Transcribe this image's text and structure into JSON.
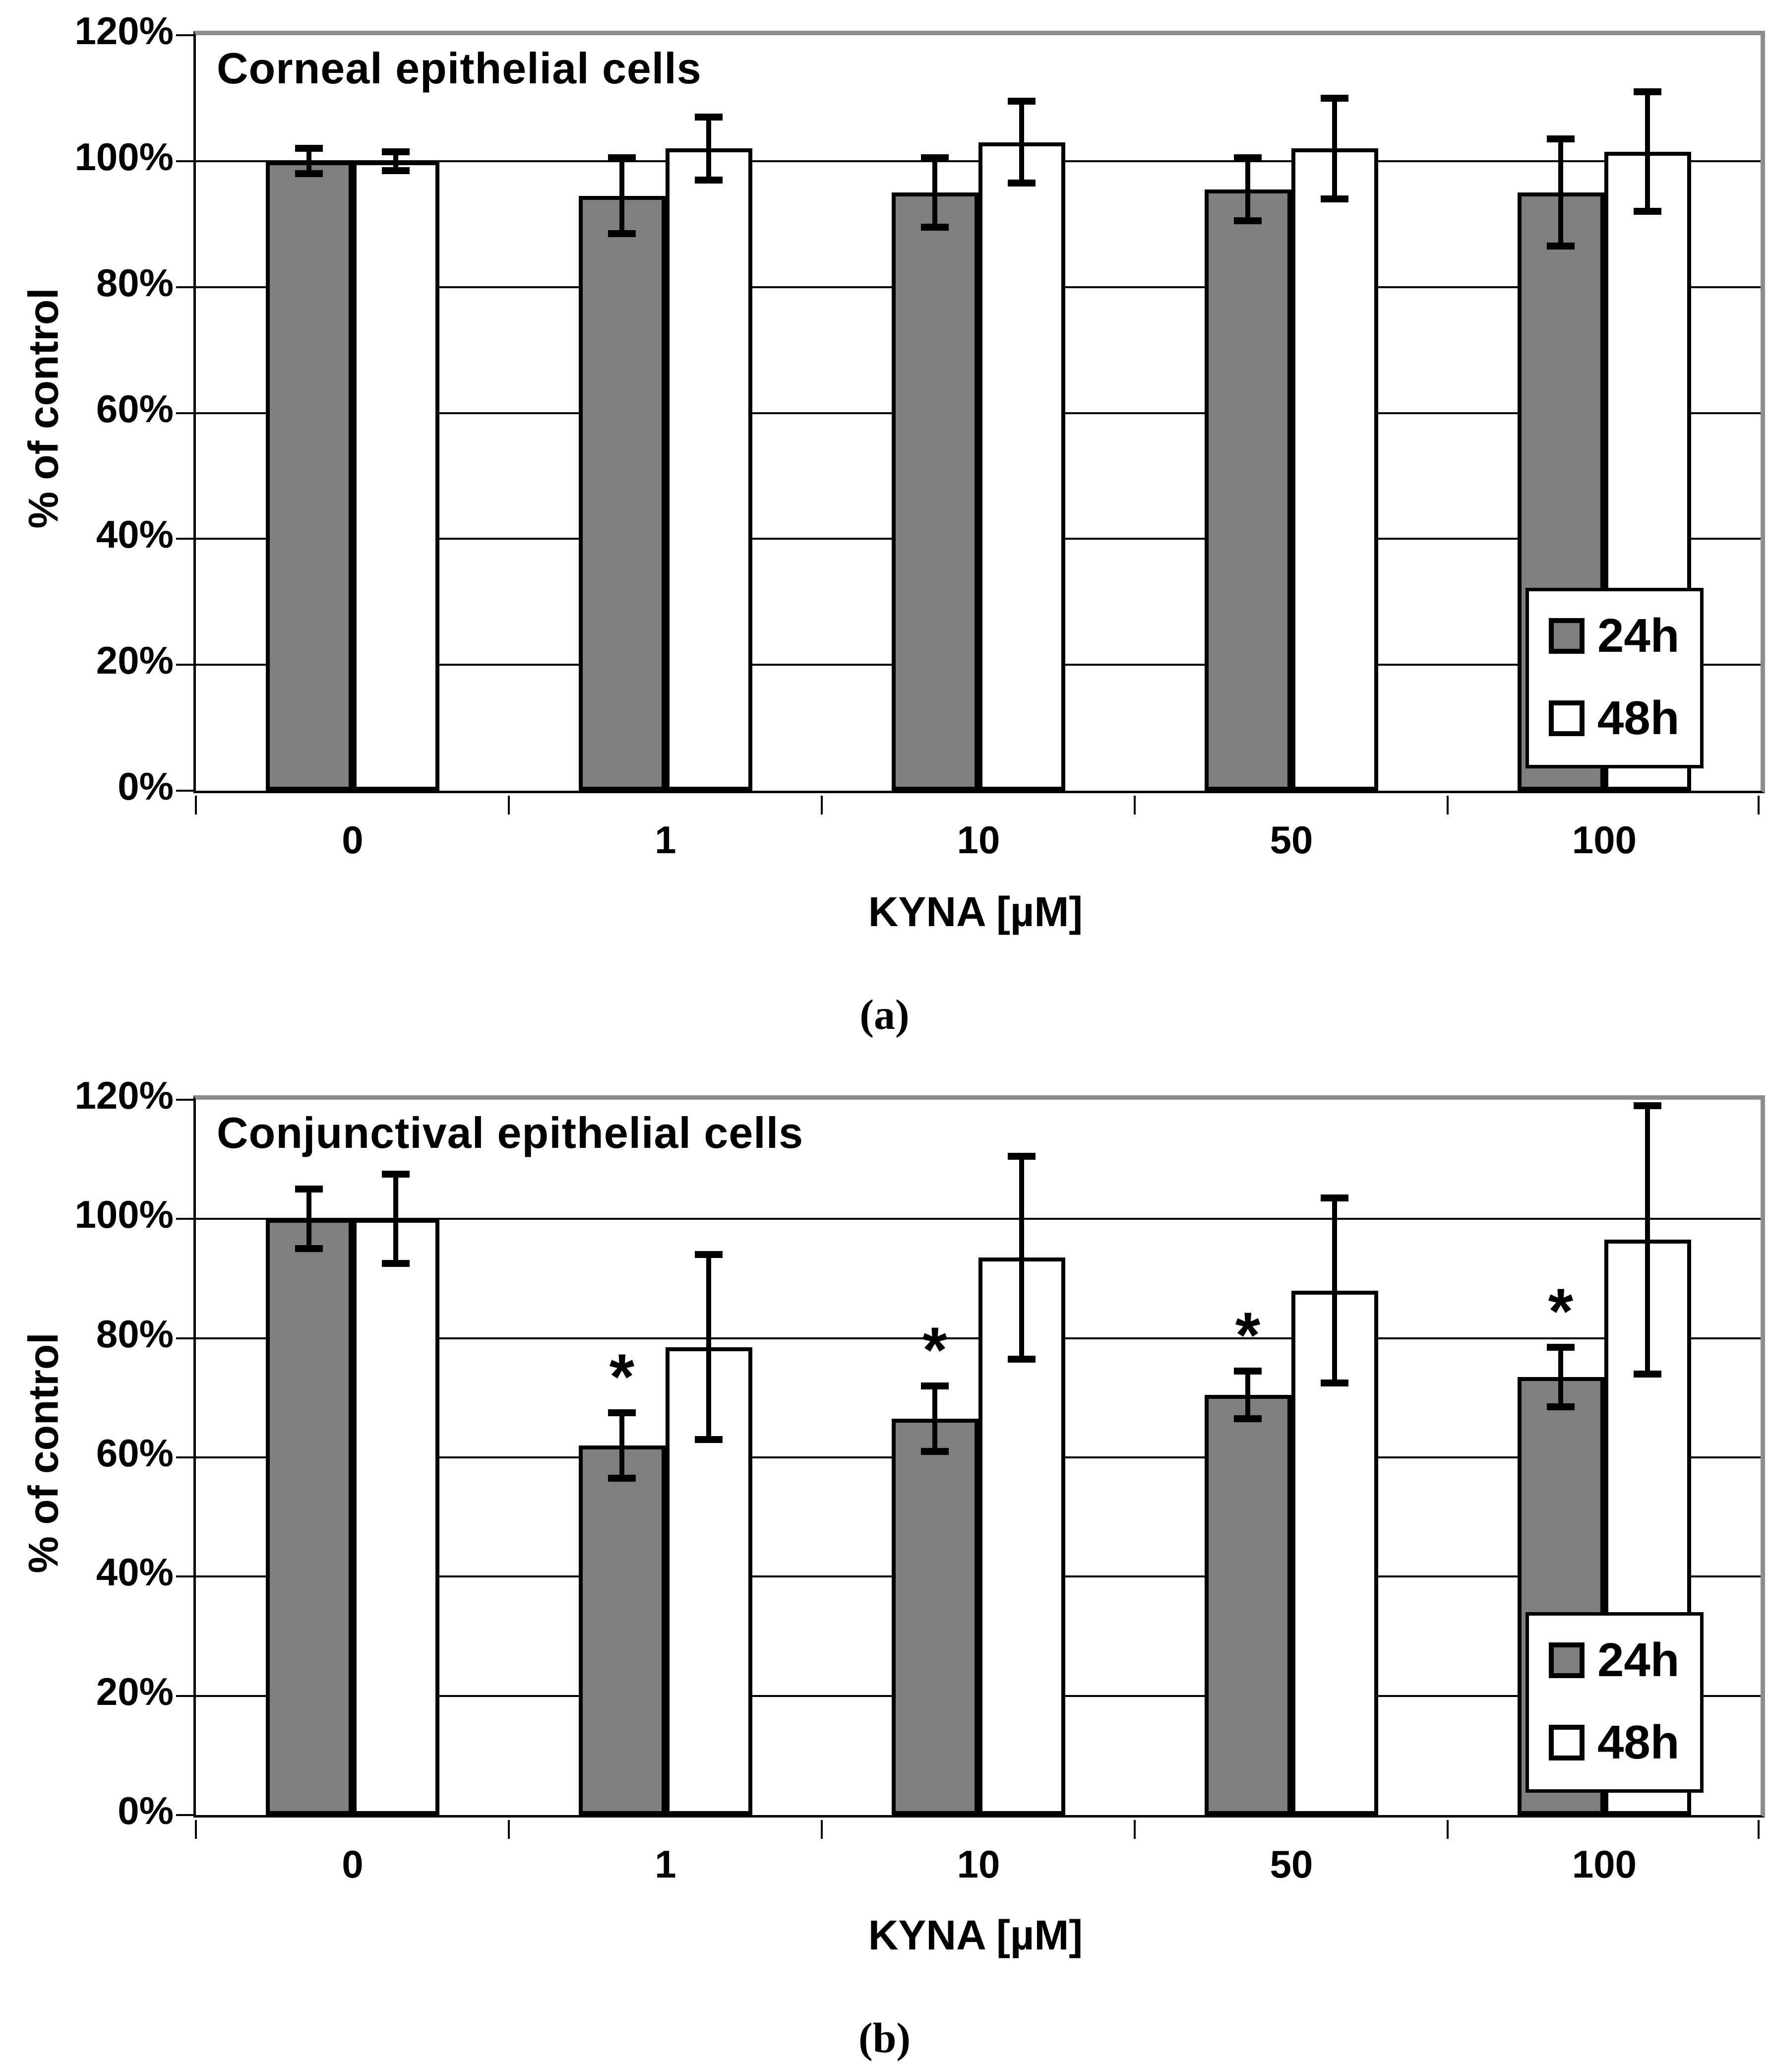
{
  "figure": {
    "background": "#ffffff",
    "panels": [
      {
        "caption": "(a)"
      },
      {
        "caption": "(b)"
      }
    ]
  },
  "chart_data": [
    {
      "type": "bar",
      "title": "Corneal epithelial cells",
      "xlabel": "KYNA [µM]",
      "ylabel": "% of control",
      "categories": [
        "0",
        "1",
        "10",
        "50",
        "100"
      ],
      "y_tick_labels": [
        "120%",
        "100%",
        "80%",
        "60%",
        "40%",
        "20%",
        "0%"
      ],
      "ylim": [
        0,
        120
      ],
      "y_step": 20,
      "grid": true,
      "legend_position": "bottom-right",
      "significance_marker": "*",
      "series": [
        {
          "name": "24h",
          "color": "#7f7f7f",
          "values": [
            100,
            94.5,
            95,
            95.5,
            95
          ],
          "errors": [
            2,
            6,
            5.5,
            5,
            8.5
          ],
          "significant": [
            false,
            false,
            false,
            false,
            false
          ]
        },
        {
          "name": "48h",
          "color": "#ffffff",
          "values": [
            100,
            102,
            103,
            102,
            101.5
          ],
          "errors": [
            1.5,
            5,
            6.5,
            8,
            9.5
          ],
          "significant": [
            false,
            false,
            false,
            false,
            false
          ]
        }
      ]
    },
    {
      "type": "bar",
      "title": "Conjunctival epithelial cells",
      "xlabel": "KYNA [µM]",
      "ylabel": "% of control",
      "categories": [
        "0",
        "1",
        "10",
        "50",
        "100"
      ],
      "y_tick_labels": [
        "120%",
        "100%",
        "80%",
        "60%",
        "40%",
        "20%",
        "0%"
      ],
      "ylim": [
        0,
        120
      ],
      "y_step": 20,
      "grid": true,
      "legend_position": "bottom-right",
      "significance_marker": "*",
      "series": [
        {
          "name": "24h",
          "color": "#7f7f7f",
          "values": [
            100,
            62,
            66.5,
            70.5,
            73.5
          ],
          "errors": [
            5,
            5.5,
            5.5,
            4,
            5
          ],
          "significant": [
            false,
            true,
            true,
            true,
            true
          ]
        },
        {
          "name": "48h",
          "color": "#ffffff",
          "values": [
            100,
            78.5,
            93.5,
            88,
            96.5
          ],
          "errors": [
            7.5,
            15.5,
            17,
            15.5,
            22.5
          ],
          "significant": [
            false,
            false,
            false,
            false,
            false
          ]
        }
      ]
    }
  ]
}
